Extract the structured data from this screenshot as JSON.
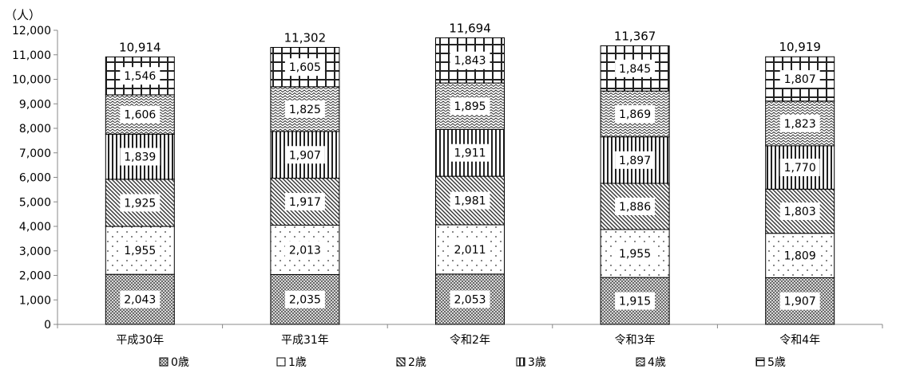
{
  "chart_data": {
    "type": "bar",
    "stacked": true,
    "ylabel": "（人）",
    "ylim": [
      0,
      12000
    ],
    "ytick_step": 1000,
    "yticks": [
      "0",
      "1,000",
      "2,000",
      "3,000",
      "4,000",
      "5,000",
      "6,000",
      "7,000",
      "8,000",
      "9,000",
      "10,000",
      "11,000",
      "12,000"
    ],
    "categories": [
      "平成30年",
      "平成31年",
      "令和2年",
      "令和3年",
      "令和4年"
    ],
    "totals": [
      "10,914",
      "11,302",
      "11,694",
      "11,367",
      "10,919"
    ],
    "series": [
      {
        "name": "0歳",
        "pattern": "dense-check",
        "values": [
          2043,
          2035,
          2053,
          1915,
          1907
        ],
        "labels": [
          "2,043",
          "2,035",
          "2,053",
          "1,915",
          "1,907"
        ]
      },
      {
        "name": "1歳",
        "pattern": "dots",
        "values": [
          1955,
          2013,
          2011,
          1955,
          1809
        ],
        "labels": [
          "1,955",
          "2,013",
          "2,011",
          "1,955",
          "1,809"
        ]
      },
      {
        "name": "2歳",
        "pattern": "diagonal",
        "values": [
          1925,
          1917,
          1981,
          1886,
          1803
        ],
        "labels": [
          "1,925",
          "1,917",
          "1,981",
          "1,886",
          "1,803"
        ]
      },
      {
        "name": "3歳",
        "pattern": "vertical",
        "values": [
          1839,
          1907,
          1911,
          1897,
          1770
        ],
        "labels": [
          "1,839",
          "1,907",
          "1,911",
          "1,897",
          "1,770"
        ]
      },
      {
        "name": "4歳",
        "pattern": "wave",
        "values": [
          1606,
          1825,
          1895,
          1869,
          1823
        ],
        "labels": [
          "1,606",
          "1,825",
          "1,895",
          "1,869",
          "1,823"
        ]
      },
      {
        "name": "5歳",
        "pattern": "grid",
        "values": [
          1546,
          1605,
          1843,
          1845,
          1807
        ],
        "labels": [
          "1,546",
          "1,605",
          "1,843",
          "1,845",
          "1,807"
        ]
      }
    ],
    "legend_position": "bottom",
    "grid": false
  }
}
